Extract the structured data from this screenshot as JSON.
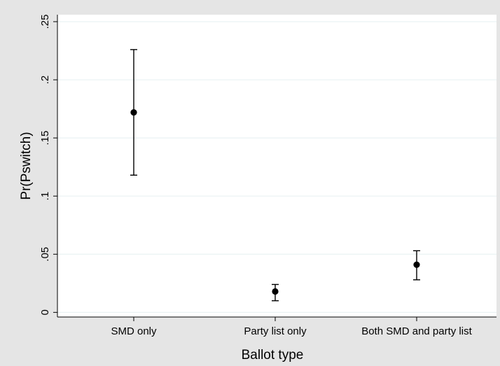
{
  "chart_data": {
    "type": "scatter",
    "title": "",
    "xlabel": "Ballot type",
    "ylabel": "Pr(Pswitch)",
    "categories": [
      "SMD only",
      "Party list only",
      "Both SMD and party list"
    ],
    "y_ticks": [
      {
        "value": 0,
        "label": "0"
      },
      {
        "value": 0.05,
        "label": ".05"
      },
      {
        "value": 0.1,
        "label": ".1"
      },
      {
        "value": 0.15,
        "label": ".15"
      },
      {
        "value": 0.2,
        "label": ".2"
      },
      {
        "value": 0.25,
        "label": ".25"
      }
    ],
    "ylim": [
      -0.004,
      0.256
    ],
    "grid": true,
    "series": [
      {
        "values": [
          0.172,
          0.018,
          0.041
        ],
        "lower": [
          0.118,
          0.01,
          0.028
        ],
        "upper": [
          0.226,
          0.024,
          0.053
        ]
      }
    ],
    "colors": {
      "outer_background": "#e5e5e5",
      "plot_background": "#ffffff",
      "grid": "#eaf2f3",
      "marks": "#000000"
    }
  }
}
